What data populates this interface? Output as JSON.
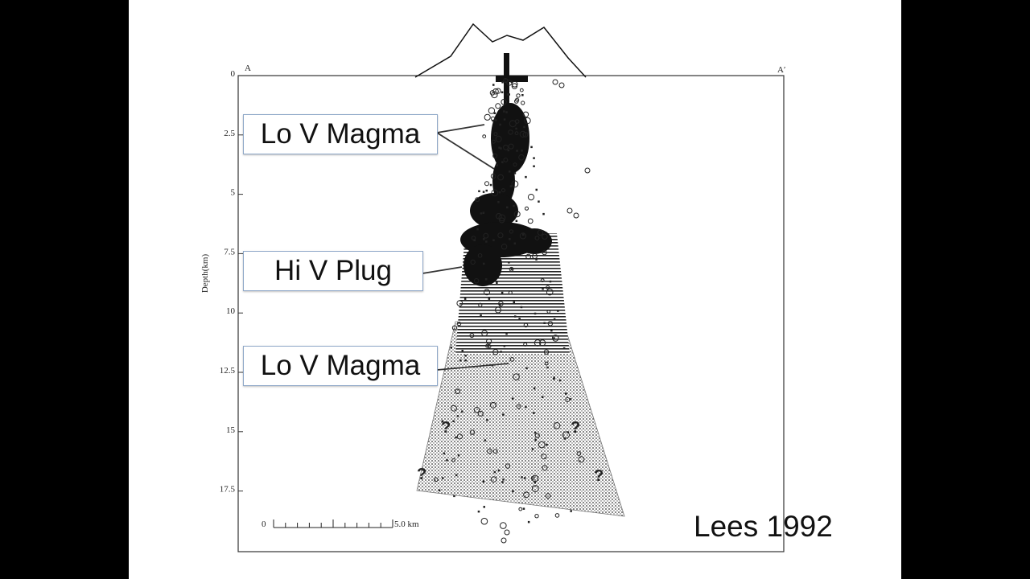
{
  "figure": {
    "section_start_label": "A",
    "section_end_label": "A′",
    "y_axis_label": "Depth(km)",
    "depth_ticks": [
      "0",
      "2.5",
      "5",
      "7.5",
      "10",
      "12.5",
      "15",
      "17.5"
    ],
    "scale_bar": {
      "start_label": "0",
      "end_label": "5.0 km"
    },
    "uncertain_marker": "?"
  },
  "callouts": {
    "upper_magma": "Lo V Magma",
    "plug": "Hi V Plug",
    "lower_magma": "Lo V Magma"
  },
  "citation": "Lees 1992"
}
